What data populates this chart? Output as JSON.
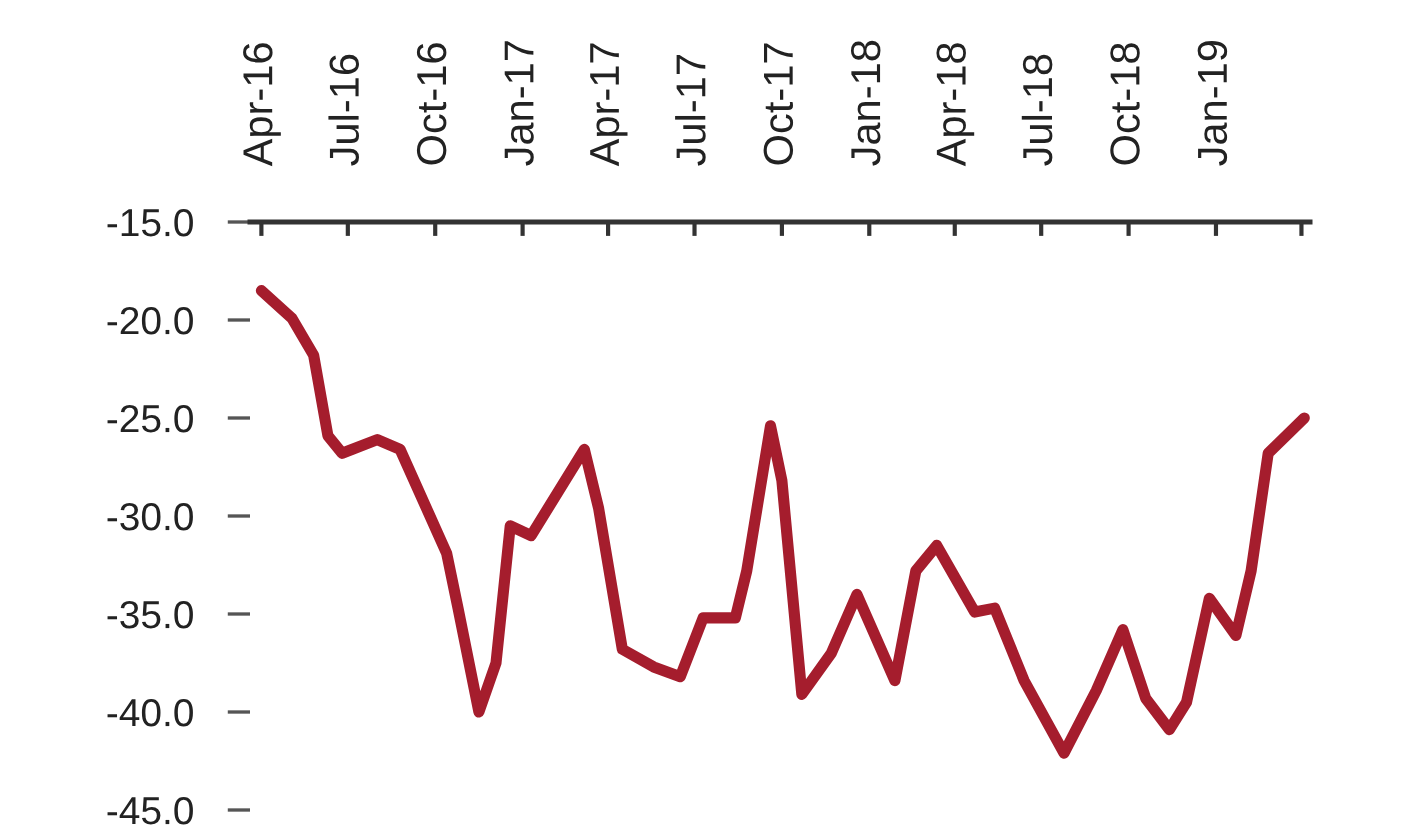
{
  "chart_data": {
    "type": "line",
    "x": [
      "2016-04-01",
      "2016-05-03",
      "2016-05-26",
      "2016-06-10",
      "2016-06-25",
      "2016-08-01",
      "2016-08-25",
      "2016-10-13",
      "2016-10-25",
      "2016-11-16",
      "2016-12-04",
      "2016-12-19",
      "2017-01-10",
      "2017-03-07",
      "2017-03-22",
      "2017-04-16",
      "2017-05-19",
      "2017-06-16",
      "2017-07-10",
      "2017-08-13",
      "2017-08-25",
      "2017-09-19",
      "2017-10-01",
      "2017-10-22",
      "2017-11-22",
      "2017-12-19",
      "2018-01-28",
      "2018-02-19",
      "2018-03-13",
      "2018-04-22",
      "2018-05-13",
      "2018-06-13",
      "2018-07-25",
      "2018-08-28",
      "2018-09-25",
      "2018-10-19",
      "2018-11-13",
      "2018-12-01",
      "2018-12-25",
      "2019-01-22",
      "2019-02-07",
      "2019-02-25",
      "2019-04-04"
    ],
    "series": [
      {
        "color": "#a51d2d",
        "values": [
          -18.5,
          -19.9,
          -21.8,
          -25.9,
          -26.8,
          -26.1,
          -26.6,
          -31.9,
          -34.7,
          -40.0,
          -37.5,
          -30.5,
          -31.0,
          -26.6,
          -29.6,
          -36.8,
          -37.7,
          -38.2,
          -35.2,
          -35.2,
          -32.8,
          -25.4,
          -28.2,
          -39.1,
          -37.0,
          -34.0,
          -38.4,
          -32.8,
          -31.5,
          -34.9,
          -34.7,
          -38.4,
          -42.1,
          -38.9,
          -35.8,
          -39.3,
          -40.9,
          -39.5,
          -34.2,
          -36.1,
          -32.8,
          -26.8,
          -25.0
        ]
      }
    ],
    "xlim": [
      "2016-03-20",
      "2019-04-10"
    ],
    "ylim": [
      -45,
      -15
    ],
    "xticks": [
      {
        "value": "2016-04-01",
        "label": "Apr-16"
      },
      {
        "value": "2016-07-01",
        "label": "Jul-16"
      },
      {
        "value": "2016-10-01",
        "label": "Oct-16"
      },
      {
        "value": "2017-01-01",
        "label": "Jan-17"
      },
      {
        "value": "2017-04-01",
        "label": "Apr-17"
      },
      {
        "value": "2017-07-01",
        "label": "Jul-17"
      },
      {
        "value": "2017-10-01",
        "label": "Oct-17"
      },
      {
        "value": "2018-01-01",
        "label": "Jan-18"
      },
      {
        "value": "2018-04-01",
        "label": "Apr-18"
      },
      {
        "value": "2018-07-01",
        "label": "Jul-18"
      },
      {
        "value": "2018-10-01",
        "label": "Oct-18"
      },
      {
        "value": "2019-01-01",
        "label": "Jan-19"
      },
      {
        "value": "2019-04-01",
        "label": null
      }
    ],
    "yticks": [
      {
        "value": -15,
        "label": "-15.0"
      },
      {
        "value": -20,
        "label": "-20.0"
      },
      {
        "value": -25,
        "label": "-25.0"
      },
      {
        "value": -30,
        "label": "-30.0"
      },
      {
        "value": -35,
        "label": "-35.0"
      },
      {
        "value": -40,
        "label": "-40.0"
      },
      {
        "value": -45,
        "label": "-45.0"
      }
    ],
    "grid": false,
    "legend": false,
    "marker": "none",
    "line_style": "solid"
  }
}
